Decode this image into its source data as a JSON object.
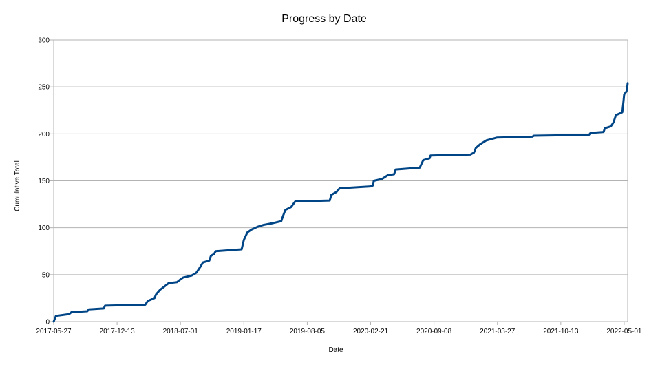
{
  "chart_data": {
    "type": "line",
    "title": "Progress by Date",
    "xlabel": "Date",
    "ylabel": "Cumulative Total",
    "xlim": [
      "2017-05-27",
      "2022-05-12"
    ],
    "ylim": [
      0,
      300
    ],
    "y_ticks": [
      0,
      50,
      100,
      150,
      200,
      250,
      300
    ],
    "x_ticks": [
      "2017-05-27",
      "2017-12-13",
      "2018-07-01",
      "2019-01-17",
      "2019-08-05",
      "2020-02-21",
      "2020-09-08",
      "2021-03-27",
      "2021-10-13",
      "2022-05-01"
    ],
    "grid": "horizontal",
    "line_color": "#004586",
    "series": [
      {
        "points": [
          [
            "2017-05-27",
            0
          ],
          [
            "2017-06-03",
            6
          ],
          [
            "2017-07-15",
            8
          ],
          [
            "2017-07-22",
            10
          ],
          [
            "2017-09-10",
            11
          ],
          [
            "2017-09-15",
            13
          ],
          [
            "2017-11-01",
            14
          ],
          [
            "2017-11-05",
            17
          ],
          [
            "2018-03-12",
            18
          ],
          [
            "2018-03-20",
            22
          ],
          [
            "2018-04-10",
            25
          ],
          [
            "2018-04-15",
            29
          ],
          [
            "2018-04-28",
            34
          ],
          [
            "2018-05-10",
            37
          ],
          [
            "2018-05-25",
            41
          ],
          [
            "2018-06-20",
            42
          ],
          [
            "2018-07-01",
            45
          ],
          [
            "2018-07-10",
            47
          ],
          [
            "2018-08-05",
            49
          ],
          [
            "2018-08-20",
            52
          ],
          [
            "2018-09-01",
            58
          ],
          [
            "2018-09-10",
            63
          ],
          [
            "2018-09-30",
            65
          ],
          [
            "2018-10-05",
            70
          ],
          [
            "2018-10-15",
            72
          ],
          [
            "2018-10-20",
            75
          ],
          [
            "2019-01-10",
            77
          ],
          [
            "2019-01-17",
            87
          ],
          [
            "2019-01-28",
            95
          ],
          [
            "2019-02-10",
            98
          ],
          [
            "2019-03-01",
            101
          ],
          [
            "2019-03-20",
            103
          ],
          [
            "2019-04-20",
            105
          ],
          [
            "2019-05-15",
            107
          ],
          [
            "2019-05-20",
            112
          ],
          [
            "2019-05-28",
            119
          ],
          [
            "2019-06-15",
            122
          ],
          [
            "2019-06-28",
            128
          ],
          [
            "2019-10-15",
            129
          ],
          [
            "2019-10-20",
            135
          ],
          [
            "2019-11-05",
            138
          ],
          [
            "2019-11-15",
            142
          ],
          [
            "2020-02-20",
            144
          ],
          [
            "2020-02-28",
            145
          ],
          [
            "2020-03-02",
            150
          ],
          [
            "2020-03-28",
            152
          ],
          [
            "2020-04-15",
            156
          ],
          [
            "2020-05-05",
            157
          ],
          [
            "2020-05-10",
            162
          ],
          [
            "2020-07-25",
            164
          ],
          [
            "2020-08-05",
            172
          ],
          [
            "2020-08-25",
            174
          ],
          [
            "2020-08-28",
            177
          ],
          [
            "2021-01-01",
            178
          ],
          [
            "2021-01-12",
            180
          ],
          [
            "2021-01-18",
            185
          ],
          [
            "2021-02-01",
            189
          ],
          [
            "2021-02-20",
            193
          ],
          [
            "2021-03-25",
            196
          ],
          [
            "2021-07-15",
            197
          ],
          [
            "2021-07-20",
            198
          ],
          [
            "2022-01-10",
            199
          ],
          [
            "2022-01-15",
            201
          ],
          [
            "2022-02-25",
            202
          ],
          [
            "2022-03-01",
            206
          ],
          [
            "2022-03-20",
            208
          ],
          [
            "2022-03-28",
            212
          ],
          [
            "2022-04-05",
            220
          ],
          [
            "2022-04-25",
            223
          ],
          [
            "2022-04-28",
            232
          ],
          [
            "2022-05-01",
            242
          ],
          [
            "2022-05-08",
            245
          ],
          [
            "2022-05-10",
            248
          ],
          [
            "2022-05-12",
            254
          ]
        ]
      }
    ]
  }
}
